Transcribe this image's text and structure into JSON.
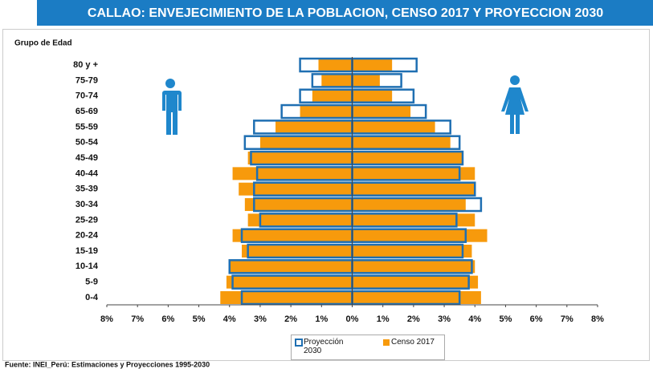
{
  "chart_data": {
    "type": "pyramid",
    "title": "CALLAO: ENVEJECIMIENTO DE LA POBLACION,  CENSO 2017 Y PROYECCION 2030",
    "y_label": "Grupo de Edad",
    "source": "Fuente: INEI_Perú: Estimaciones y Proyecciones 1995-2030",
    "categories": [
      "0-4",
      "5-9",
      "10-14",
      "15-19",
      "20-24",
      "25-29",
      "30-34",
      "35-39",
      "40-44",
      "45-49",
      "50-54",
      "55-59",
      "65-69",
      "70-74",
      "75-79",
      "80 y +"
    ],
    "series": [
      {
        "name": "Proyección 2030",
        "color": "#1f6fb2",
        "style": "outline",
        "values_left": [
          -3.6,
          -3.9,
          -4.0,
          -3.4,
          -3.6,
          -3.0,
          -3.2,
          -3.2,
          -3.1,
          -3.3,
          -3.5,
          -3.2,
          -2.3,
          -1.7,
          -1.3,
          -1.7
        ],
        "values_right": [
          3.5,
          3.8,
          3.9,
          3.6,
          3.7,
          3.4,
          4.2,
          4.0,
          3.5,
          3.6,
          3.5,
          3.2,
          2.4,
          2.0,
          1.6,
          2.1
        ]
      },
      {
        "name": "Censo 2017",
        "color": "#f79a0c",
        "style": "fill",
        "values_left": [
          -4.3,
          -4.1,
          -4.0,
          -3.6,
          -3.9,
          -3.4,
          -3.5,
          -3.7,
          -3.9,
          -3.4,
          -3.0,
          -2.5,
          -1.7,
          -1.3,
          -1.0,
          -1.1
        ],
        "values_right": [
          4.2,
          4.1,
          4.0,
          3.9,
          4.4,
          4.0,
          3.7,
          4.0,
          4.0,
          3.6,
          3.2,
          2.7,
          1.9,
          1.3,
          0.9,
          1.3
        ]
      }
    ],
    "xlim": [
      -8,
      8
    ],
    "xticks": [
      {
        "value": -8,
        "label": "8%"
      },
      {
        "value": -7,
        "label": "7%"
      },
      {
        "value": -6,
        "label": "6%"
      },
      {
        "value": -5,
        "label": "5%"
      },
      {
        "value": -4,
        "label": "4%"
      },
      {
        "value": -3,
        "label": "3%"
      },
      {
        "value": -2,
        "label": "2%"
      },
      {
        "value": -1,
        "label": "1%"
      },
      {
        "value": 0,
        "label": "0%"
      },
      {
        "value": 1,
        "label": "1%"
      },
      {
        "value": 2,
        "label": "2%"
      },
      {
        "value": 3,
        "label": "3%"
      },
      {
        "value": 4,
        "label": "4%"
      },
      {
        "value": 5,
        "label": "5%"
      },
      {
        "value": 6,
        "label": "6%"
      },
      {
        "value": 7,
        "label": "7%"
      },
      {
        "value": 8,
        "label": "8%"
      }
    ]
  }
}
